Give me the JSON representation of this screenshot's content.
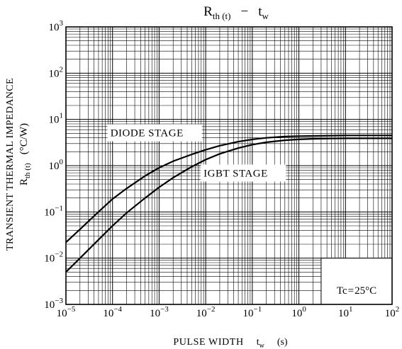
{
  "chart_data": {
    "type": "line",
    "title": {
      "main": "R",
      "sub": "th (t)",
      "dash": "−",
      "var": "t",
      "var_sub": "w"
    },
    "xlabel": {
      "main": "PULSE WIDTH",
      "var": "t",
      "var_sub": "w",
      "unit": "(s)"
    },
    "ylabel": {
      "line1": "TRANSIENT THERMAL IMPEDANCE",
      "main": "R",
      "sub": "th (t)",
      "unit": "(°C/W)"
    },
    "x_scale": "log",
    "y_scale": "log",
    "xlim": [
      1e-05,
      100
    ],
    "ylim": [
      0.001,
      1000
    ],
    "grid": true,
    "x_ticks": [
      {
        "base": "10",
        "exp": "−5"
      },
      {
        "base": "10",
        "exp": "−4"
      },
      {
        "base": "10",
        "exp": "−3"
      },
      {
        "base": "10",
        "exp": "−2"
      },
      {
        "base": "10",
        "exp": "−1"
      },
      {
        "base": "10",
        "exp": "0"
      },
      {
        "base": "10",
        "exp": "1"
      },
      {
        "base": "10",
        "exp": "2"
      }
    ],
    "y_ticks": [
      {
        "base": "10",
        "exp": "−3"
      },
      {
        "base": "10",
        "exp": "−2"
      },
      {
        "base": "10",
        "exp": "−1"
      },
      {
        "base": "10",
        "exp": "0"
      },
      {
        "base": "10",
        "exp": "1"
      },
      {
        "base": "10",
        "exp": "2"
      },
      {
        "base": "10",
        "exp": "3"
      }
    ],
    "series": [
      {
        "name": "DIODE STAGE",
        "x": [
          1e-05,
          2e-05,
          5e-05,
          0.0001,
          0.0002,
          0.0005,
          0.001,
          0.002,
          0.005,
          0.01,
          0.02,
          0.05,
          0.1,
          0.2,
          0.5,
          1,
          2,
          5,
          10,
          20,
          50,
          100
        ],
        "y": [
          0.022,
          0.042,
          0.1,
          0.19,
          0.32,
          0.6,
          0.9,
          1.25,
          1.75,
          2.2,
          2.7,
          3.3,
          3.7,
          4.0,
          4.25,
          4.35,
          4.4,
          4.45,
          4.5,
          4.5,
          4.5,
          4.5
        ]
      },
      {
        "name": "IGBT STAGE",
        "x": [
          1e-05,
          2e-05,
          5e-05,
          0.0001,
          0.0002,
          0.0005,
          0.001,
          0.002,
          0.005,
          0.01,
          0.02,
          0.05,
          0.1,
          0.2,
          0.5,
          1,
          2,
          5,
          10,
          20,
          50,
          100
        ],
        "y": [
          0.005,
          0.01,
          0.025,
          0.05,
          0.095,
          0.2,
          0.34,
          0.55,
          0.95,
          1.35,
          1.8,
          2.4,
          2.85,
          3.2,
          3.55,
          3.7,
          3.8,
          3.85,
          3.9,
          3.9,
          3.9,
          3.9
        ]
      }
    ],
    "annotations": [
      {
        "text": "DIODE STAGE",
        "x": 9e-05,
        "y": 4.3
      },
      {
        "text": "IGBT STAGE",
        "x": 0.009,
        "y": 0.58
      }
    ],
    "legend_box": {
      "main": "Tc",
      "eq": "=",
      "value": "25°C"
    }
  }
}
